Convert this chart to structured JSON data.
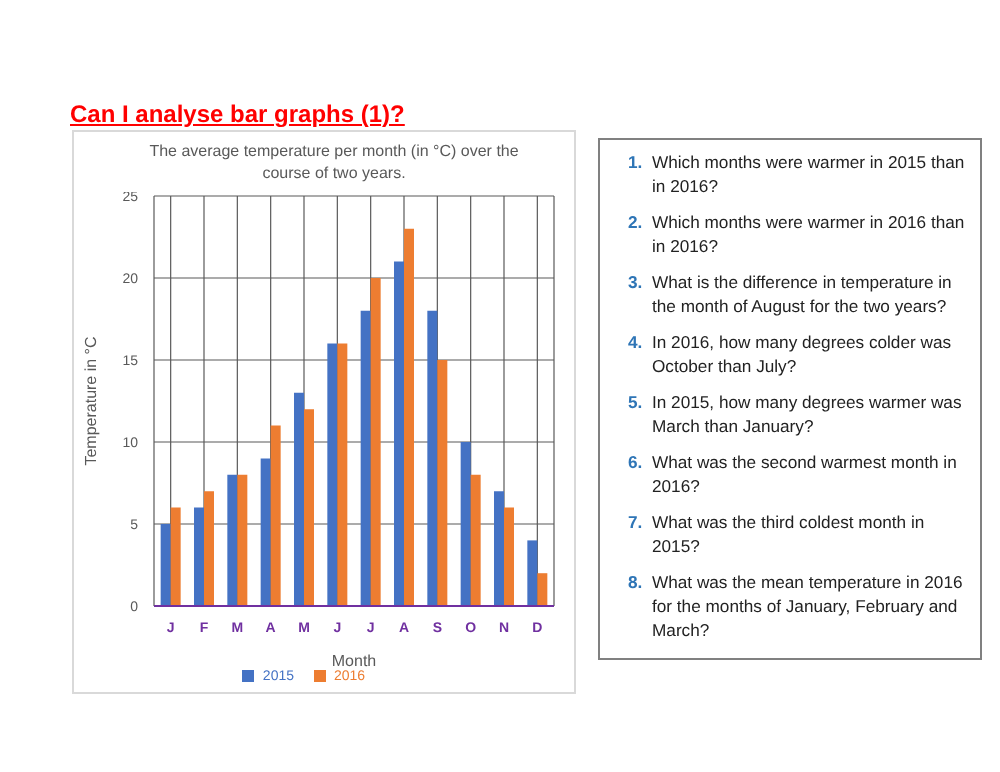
{
  "chart_data": {
    "type": "bar",
    "title": "Can I analyse bar graphs (1)?",
    "subtitle": "The average temperature per month (in °C) over the course of two years.",
    "xlabel": "Month",
    "ylabel": "Temperature in °C",
    "categories": [
      "J",
      "F",
      "M",
      "A",
      "M",
      "J",
      "J",
      "A",
      "S",
      "O",
      "N",
      "D"
    ],
    "series": [
      {
        "name": "2015",
        "color": "#4472c4",
        "values": [
          5,
          6,
          8,
          9,
          13,
          16,
          18,
          21,
          18,
          10,
          7,
          4
        ]
      },
      {
        "name": "2016",
        "color": "#ed7d31",
        "values": [
          6,
          7,
          8,
          11,
          12,
          16,
          20,
          23,
          15,
          8,
          6,
          2
        ]
      }
    ],
    "ylim": [
      0,
      25
    ],
    "yticks": [
      0,
      5,
      10,
      15,
      20,
      25
    ],
    "grid": true,
    "legend": "bottom",
    "annotations": [
      "1. Which months were warmer in 2015 than in 2016?",
      "2. Which months were warmer in 2016 than in 2016?",
      "3. What is the difference in temperature in the month of August for the two years?",
      "4. In 2016, how many degrees colder was October than July?",
      "5. In 2015, how many degrees warmer was March than January?",
      "6. What was the second warmest month in 2016?",
      "7. What was the third coldest month in 2015?",
      "8. What was the mean temperature in 2016 for the months of January, February and March?"
    ]
  }
}
